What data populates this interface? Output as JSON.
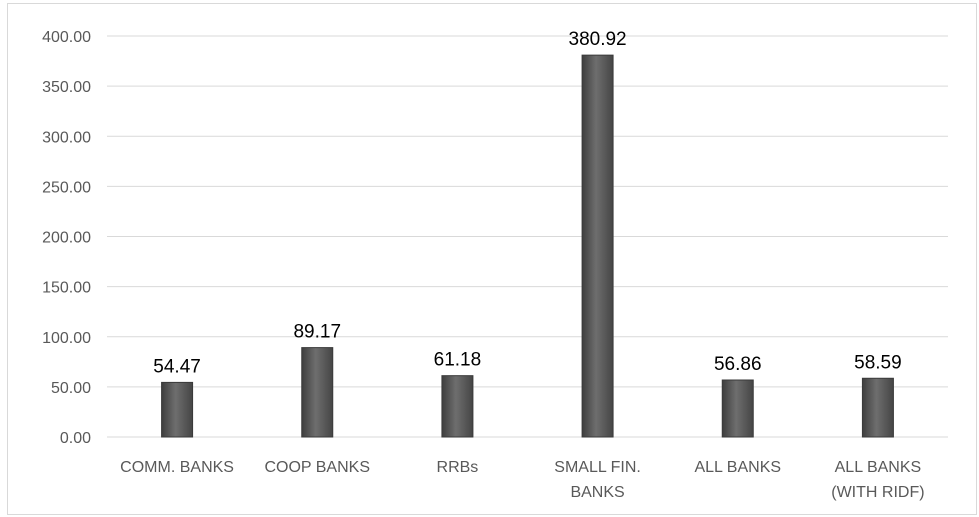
{
  "chart_data": {
    "type": "bar",
    "categories": [
      [
        "COMM. BANKS"
      ],
      [
        "COOP BANKS"
      ],
      [
        "RRBs"
      ],
      [
        "SMALL FIN.",
        "BANKS"
      ],
      [
        "ALL BANKS"
      ],
      [
        "ALL BANKS",
        "(WITH RIDF)"
      ]
    ],
    "values": [
      54.47,
      89.17,
      61.18,
      380.92,
      56.86,
      58.59
    ],
    "data_labels": [
      "54.47",
      "89.17",
      "61.18",
      "380.92",
      "56.86",
      "58.59"
    ],
    "y_ticks": [
      "0.00",
      "50.00",
      "100.00",
      "150.00",
      "200.00",
      "250.00",
      "300.00",
      "350.00",
      "400.00"
    ],
    "ylim": [
      0,
      400
    ],
    "title": "",
    "xlabel": "",
    "ylabel": "",
    "grid": true,
    "legend": "none",
    "colors": {
      "bar": "#5f5f5f",
      "bar_edge": "#3a3a3a",
      "grid": "#d9d9d9",
      "tick_text": "#595959",
      "label_text": "#000000"
    }
  }
}
